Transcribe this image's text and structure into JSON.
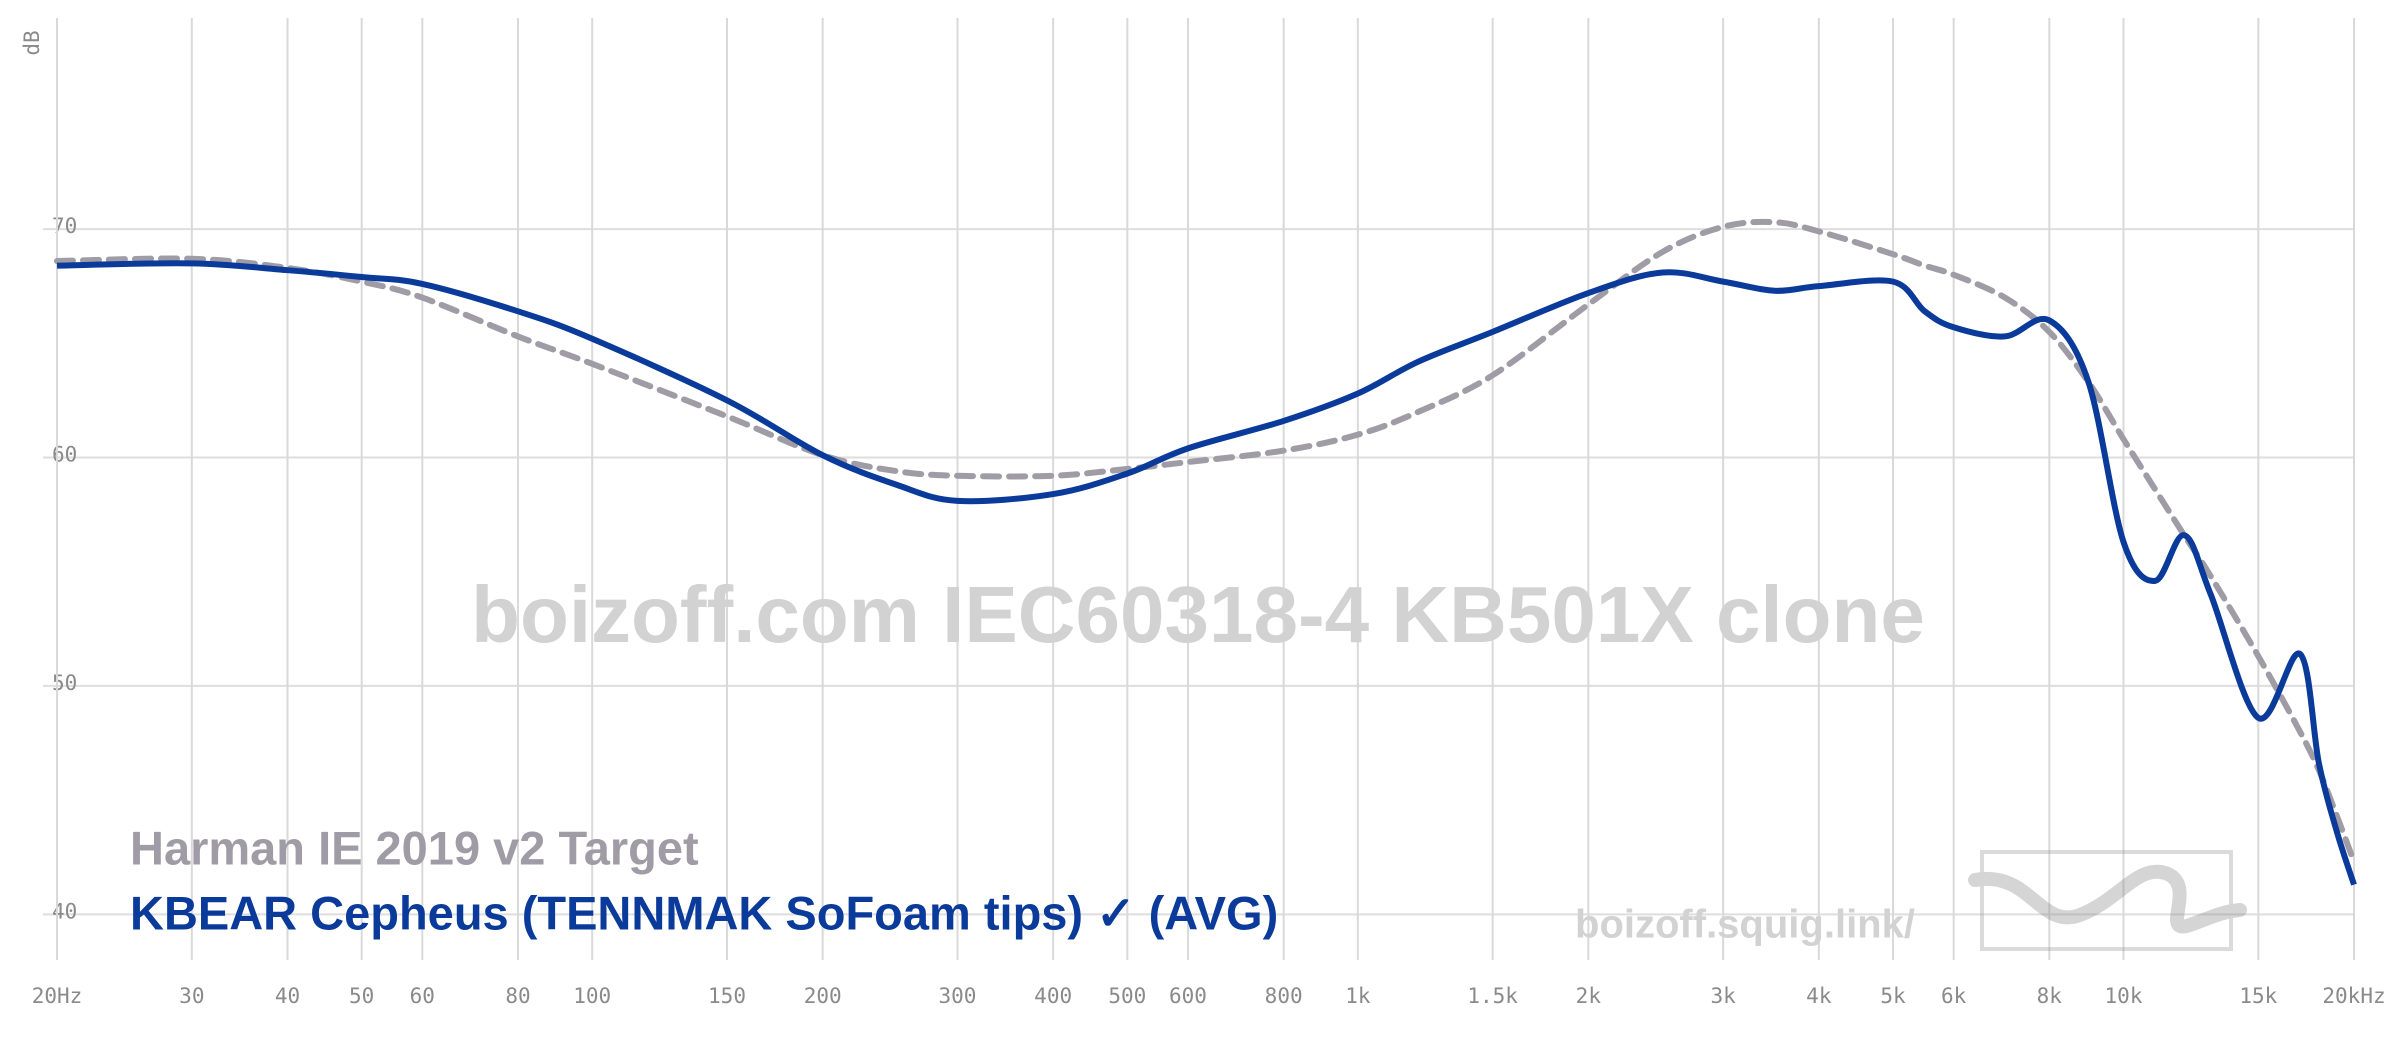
{
  "chart_data": {
    "type": "line",
    "watermark": "boizoff.com IEC60318-4 KB501X clone",
    "site": "boizoff.squig.link/",
    "ylabel": "dB",
    "x": [
      20,
      30,
      40,
      50,
      60,
      80,
      100,
      150,
      200,
      250,
      300,
      400,
      500,
      600,
      800,
      1000,
      1200,
      1500,
      2000,
      2500,
      3000,
      3500,
      4000,
      5000,
      5500,
      6000,
      7000,
      8000,
      9000,
      10000,
      11000,
      12000,
      13000,
      15000,
      17000,
      18000,
      19000,
      20000
    ],
    "series": [
      {
        "name": "Harman IE 2019 v2 Target",
        "color": "#a09ca6",
        "dashed": true,
        "values": [
          68.6,
          68.7,
          68.3,
          67.7,
          67.0,
          65.3,
          64.1,
          61.8,
          60.1,
          59.4,
          59.2,
          59.2,
          59.5,
          59.8,
          60.3,
          61.0,
          62.0,
          63.6,
          66.7,
          69.0,
          70.1,
          70.3,
          69.9,
          68.9,
          68.4,
          68.0,
          67.0,
          65.5,
          63.3,
          60.8,
          58.6,
          56.6,
          54.8,
          51.3,
          48.0,
          46.3,
          44.3,
          42.3
        ]
      },
      {
        "name": "KBEAR Cepheus (TENNMAK SoFoam tips) ✓ (AVG)",
        "color": "#0a3a9a",
        "dashed": false,
        "values": [
          68.4,
          68.5,
          68.2,
          67.9,
          67.6,
          66.4,
          65.2,
          62.5,
          60.1,
          58.8,
          58.1,
          58.4,
          59.3,
          60.4,
          61.6,
          62.8,
          64.2,
          65.5,
          67.2,
          68.1,
          67.7,
          67.3,
          67.5,
          67.7,
          66.4,
          65.7,
          65.3,
          66.0,
          63.3,
          56.3,
          54.6,
          56.6,
          54.0,
          48.6,
          51.4,
          46.6,
          43.6,
          41.3
        ]
      }
    ],
    "log_x": true,
    "xlim": [
      20,
      20000
    ],
    "xticks": [
      {
        "value": 20,
        "label": "20Hz"
      },
      30,
      40,
      50,
      60,
      80,
      100,
      150,
      200,
      300,
      400,
      500,
      600,
      800,
      {
        "value": 1000,
        "label": "1k"
      },
      {
        "value": 1500,
        "label": "1.5k"
      },
      {
        "value": 2000,
        "label": "2k"
      },
      {
        "value": 3000,
        "label": "3k"
      },
      {
        "value": 4000,
        "label": "4k"
      },
      {
        "value": 5000,
        "label": "5k"
      },
      {
        "value": 6000,
        "label": "6k"
      },
      {
        "value": 8000,
        "label": "8k"
      },
      {
        "value": 10000,
        "label": "10k"
      },
      {
        "value": 15000,
        "label": "15k"
      },
      {
        "value": 20000,
        "label": "20kHz"
      }
    ],
    "ylim": [
      38,
      79
    ],
    "yticks": [
      40,
      50,
      60,
      70
    ],
    "grid": true
  }
}
